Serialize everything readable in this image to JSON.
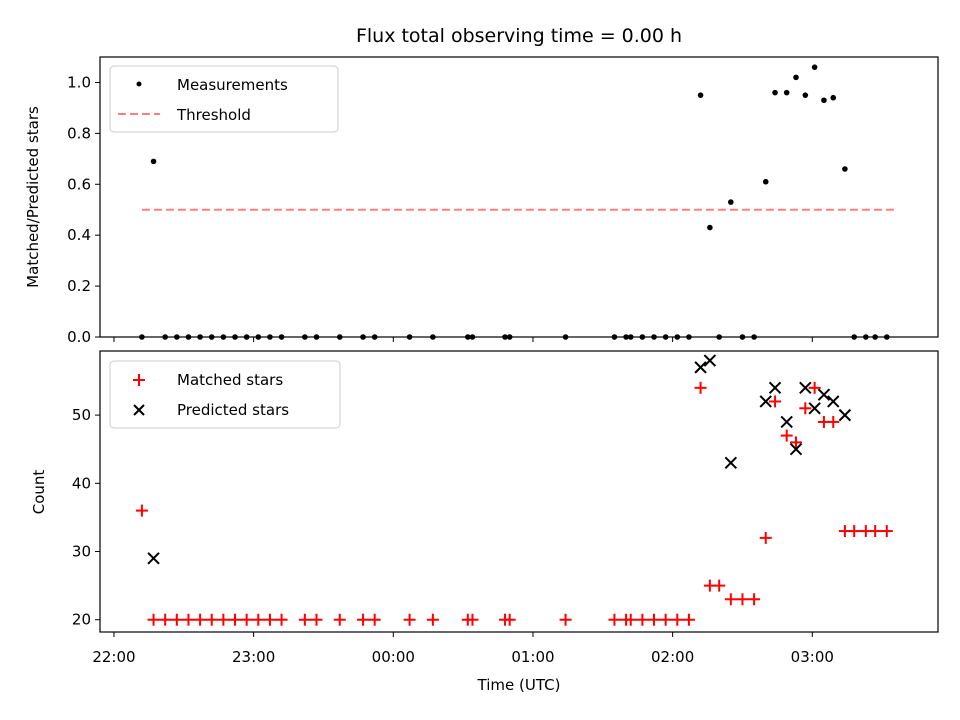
{
  "chart_data": [
    {
      "type": "scatter",
      "title": "Flux total observing time = 0.00 h",
      "xlabel": "",
      "ylabel": "Matched/Predicted stars",
      "ylim": [
        0,
        1.1
      ],
      "xlim": [
        "21:54",
        "03:54"
      ],
      "yticks": [
        "0.0",
        "0.2",
        "0.4",
        "0.6",
        "0.8",
        "1.0"
      ],
      "grid": false,
      "legend": {
        "placement": "top-left",
        "entries": [
          "Measurements",
          "Threshold"
        ]
      },
      "colors": {
        "measurements": "#000000",
        "threshold": "#ff7f7f"
      },
      "series": [
        {
          "name": "Measurements",
          "x": [
            "22:12",
            "22:17",
            "22:22",
            "22:27",
            "22:32",
            "22:37",
            "22:42",
            "22:47",
            "22:52",
            "22:57",
            "23:02",
            "23:07",
            "23:12",
            "23:22",
            "23:27",
            "23:37",
            "23:47",
            "23:52",
            "00:07",
            "00:17",
            "00:32",
            "00:34",
            "00:48",
            "00:50",
            "01:14",
            "01:35",
            "01:40",
            "01:42",
            "01:47",
            "01:52",
            "01:57",
            "02:02",
            "02:07",
            "02:12",
            "02:16",
            "02:20",
            "02:25",
            "02:30",
            "02:35",
            "02:40",
            "02:44",
            "02:49",
            "02:53",
            "02:57",
            "03:01",
            "03:05",
            "03:09",
            "03:14",
            "03:18",
            "03:23",
            "03:27",
            "03:32"
          ],
          "y": [
            0,
            0.69,
            0,
            0,
            0,
            0,
            0,
            0,
            0,
            0,
            0,
            0,
            0,
            0,
            0,
            0,
            0,
            0,
            0,
            0,
            0,
            0,
            0,
            0,
            0,
            0,
            0,
            0,
            0,
            0,
            0,
            0,
            0,
            0.95,
            0.43,
            0,
            0.53,
            0,
            0,
            0.61,
            0.96,
            0.96,
            1.02,
            0.95,
            1.06,
            0.93,
            0.94,
            0.66,
            0,
            0,
            0,
            0
          ]
        }
      ],
      "threshold": {
        "name": "Threshold",
        "value": 0.5,
        "x_start": "22:12",
        "x_end": "03:36"
      }
    },
    {
      "type": "scatter",
      "title": "",
      "xlabel": "Time (UTC)",
      "ylabel": "Count",
      "ylim": [
        18.2,
        59.4
      ],
      "xlim": [
        "21:54",
        "03:54"
      ],
      "xticks": [
        "22:00",
        "23:00",
        "00:00",
        "01:00",
        "02:00",
        "03:00"
      ],
      "yticks": [
        "20",
        "30",
        "40",
        "50"
      ],
      "grid": false,
      "legend": {
        "placement": "top-left",
        "entries": [
          "Matched stars",
          "Predicted stars"
        ]
      },
      "colors": {
        "matched": "#ff0000",
        "predicted": "#000000"
      },
      "series": [
        {
          "name": "Matched stars",
          "x": [
            "22:12",
            "22:17",
            "22:22",
            "22:27",
            "22:32",
            "22:37",
            "22:42",
            "22:47",
            "22:52",
            "22:57",
            "23:02",
            "23:07",
            "23:12",
            "23:22",
            "23:27",
            "23:37",
            "23:47",
            "23:52",
            "00:07",
            "00:17",
            "00:32",
            "00:34",
            "00:48",
            "00:50",
            "01:14",
            "01:35",
            "01:40",
            "01:42",
            "01:47",
            "01:52",
            "01:57",
            "02:02",
            "02:07",
            "02:12",
            "02:16",
            "02:20",
            "02:25",
            "02:30",
            "02:35",
            "02:40",
            "02:44",
            "02:49",
            "02:53",
            "02:57",
            "03:01",
            "03:05",
            "03:09",
            "03:14",
            "03:18",
            "03:23",
            "03:27",
            "03:32"
          ],
          "y": [
            36,
            20,
            20,
            20,
            20,
            20,
            20,
            20,
            20,
            20,
            20,
            20,
            20,
            20,
            20,
            20,
            20,
            20,
            20,
            20,
            20,
            20,
            20,
            20,
            20,
            20,
            20,
            20,
            20,
            20,
            20,
            20,
            20,
            54,
            25,
            25,
            23,
            23,
            23,
            32,
            52,
            47,
            46,
            51,
            54,
            49,
            49,
            33,
            33,
            33,
            33,
            33
          ]
        },
        {
          "name": "Predicted stars",
          "x": [
            "22:17",
            "02:12",
            "02:16",
            "02:25",
            "02:40",
            "02:44",
            "02:49",
            "02:53",
            "02:57",
            "03:01",
            "03:05",
            "03:09",
            "03:14"
          ],
          "y": [
            29,
            57,
            58,
            43,
            52,
            54,
            49,
            45,
            54,
            51,
            53,
            52,
            50
          ]
        }
      ]
    }
  ]
}
